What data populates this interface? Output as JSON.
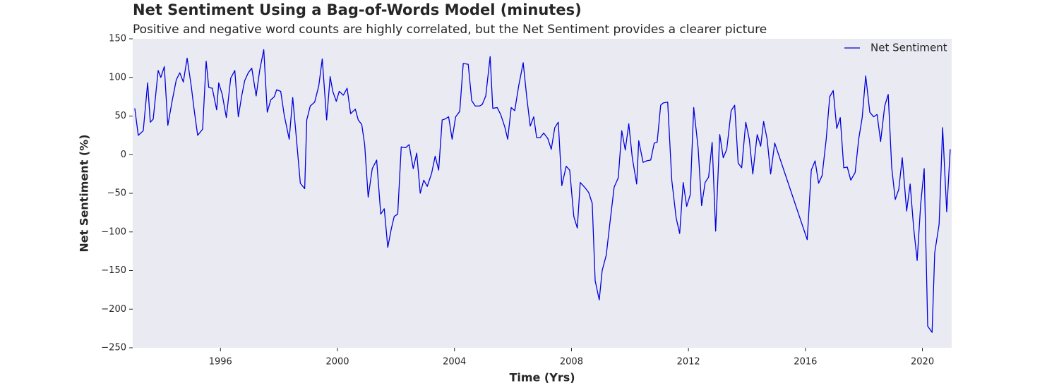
{
  "chart_data": {
    "type": "line",
    "title": "Net Sentiment Using a Bag-of-Words Model (minutes)",
    "subtitle": "Positive and negative word counts are highly correlated, but the Net Sentiment provides a clearer picture",
    "x_label": "Time (Yrs)",
    "y_label": "Net Sentiment (%)",
    "legend_position": "upper right",
    "grid": false,
    "background": "#eaeaf2",
    "xlim": [
      1993.0,
      2021.0
    ],
    "ylim": [
      -250,
      150
    ],
    "xticks": [
      1996,
      2000,
      2004,
      2008,
      2012,
      2016,
      2020
    ],
    "yticks": [
      {
        "value": -250,
        "label": "−250"
      },
      {
        "value": -200,
        "label": "−200"
      },
      {
        "value": -150,
        "label": "−150"
      },
      {
        "value": -100,
        "label": "−100"
      },
      {
        "value": -50,
        "label": "−50"
      },
      0,
      50,
      100,
      150
    ],
    "x": [
      1993.07,
      1993.19,
      1993.36,
      1993.51,
      1993.6,
      1993.7,
      1993.87,
      1993.96,
      1994.08,
      1994.2,
      1994.35,
      1994.49,
      1994.61,
      1994.73,
      1994.86,
      1995.0,
      1995.1,
      1995.22,
      1995.39,
      1995.51,
      1995.6,
      1995.72,
      1995.87,
      1995.94,
      1996.06,
      1996.2,
      1996.35,
      1996.49,
      1996.61,
      1996.73,
      1996.83,
      1996.95,
      1997.07,
      1997.22,
      1997.34,
      1997.48,
      1997.6,
      1997.72,
      1997.84,
      1997.92,
      1998.06,
      1998.18,
      1998.35,
      1998.47,
      1998.57,
      1998.73,
      1998.88,
      1998.95,
      1999.07,
      1999.22,
      1999.36,
      1999.48,
      1999.63,
      1999.75,
      1999.84,
      1999.96,
      2000.06,
      2000.2,
      2000.33,
      2000.45,
      2000.61,
      2000.71,
      2000.83,
      2000.93,
      2001.05,
      2001.19,
      2001.34,
      2001.48,
      2001.6,
      2001.72,
      2001.84,
      2001.94,
      2002.06,
      2002.18,
      2002.33,
      2002.45,
      2002.59,
      2002.71,
      2002.83,
      2002.95,
      2003.07,
      2003.22,
      2003.34,
      2003.46,
      2003.58,
      2003.67,
      2003.8,
      2003.92,
      2004.04,
      2004.18,
      2004.3,
      2004.47,
      2004.59,
      2004.71,
      2004.86,
      2004.95,
      2005.07,
      2005.22,
      2005.31,
      2005.46,
      2005.58,
      2005.72,
      2005.82,
      2005.94,
      2006.06,
      2006.2,
      2006.35,
      2006.47,
      2006.59,
      2006.71,
      2006.81,
      2006.93,
      2007.05,
      2007.19,
      2007.31,
      2007.43,
      2007.55,
      2007.67,
      2007.82,
      2007.94,
      2008.08,
      2008.2,
      2008.3,
      2008.47,
      2008.59,
      2008.71,
      2008.81,
      2008.95,
      2009.05,
      2009.19,
      2009.31,
      2009.46,
      2009.6,
      2009.72,
      2009.84,
      2009.96,
      2010.08,
      2010.23,
      2010.3,
      2010.45,
      2010.57,
      2010.71,
      2010.83,
      2010.93,
      2011.05,
      2011.14,
      2011.29,
      2011.43,
      2011.58,
      2011.7,
      2011.82,
      2011.94,
      2012.06,
      2012.18,
      2012.33,
      2012.45,
      2012.57,
      2012.69,
      2012.81,
      2012.93,
      2013.07,
      2013.19,
      2013.31,
      2013.46,
      2013.58,
      2013.7,
      2013.82,
      2013.96,
      2014.08,
      2014.2,
      2014.35,
      2014.47,
      2014.57,
      2014.69,
      2014.81,
      2014.95,
      2016.06,
      2016.2,
      2016.33,
      2016.45,
      2016.57,
      2016.71,
      2016.83,
      2016.95,
      2017.07,
      2017.19,
      2017.31,
      2017.43,
      2017.55,
      2017.7,
      2017.82,
      2017.94,
      2018.06,
      2018.2,
      2018.33,
      2018.45,
      2018.57,
      2018.71,
      2018.83,
      2018.95,
      2019.07,
      2019.19,
      2019.31,
      2019.46,
      2019.58,
      2019.7,
      2019.82,
      2019.94,
      2020.06,
      2020.18,
      2020.33,
      2020.42,
      2020.57,
      2020.69,
      2020.83,
      2020.95
    ],
    "series": [
      {
        "name": "Net Sentiment",
        "color": "#0000dd",
        "values": [
          60,
          25,
          31,
          93,
          42,
          46,
          109,
          100,
          114,
          38,
          70,
          97,
          106,
          94,
          125,
          89,
          58,
          25,
          33,
          121,
          87,
          86,
          58,
          93,
          78,
          48,
          99,
          109,
          49,
          77,
          96,
          106,
          112,
          76,
          109,
          136,
          55,
          71,
          75,
          84,
          82,
          51,
          20,
          74,
          32,
          -37,
          -44,
          45,
          63,
          68,
          89,
          124,
          45,
          101,
          82,
          69,
          82,
          77,
          86,
          53,
          59,
          45,
          39,
          13,
          -55,
          -18,
          -7,
          -77,
          -70,
          -120,
          -96,
          -80,
          -77,
          10,
          9,
          13,
          -18,
          2,
          -50,
          -33,
          -41,
          -24,
          -2,
          -20,
          45,
          46,
          49,
          20,
          49,
          56,
          118,
          117,
          70,
          63,
          63,
          65,
          76,
          127,
          60,
          61,
          52,
          36,
          20,
          61,
          57,
          90,
          119,
          75,
          37,
          49,
          22,
          22,
          28,
          21,
          7,
          35,
          42,
          -40,
          -15,
          -20,
          -80,
          -95,
          -36,
          -43,
          -49,
          -63,
          -163,
          -188,
          -150,
          -130,
          -90,
          -42,
          -30,
          31,
          6,
          40,
          -4,
          -38,
          18,
          -10,
          -8,
          -7,
          15,
          16,
          64,
          67,
          68,
          -33,
          -82,
          -102,
          -36,
          -67,
          -52,
          61,
          9,
          -66,
          -36,
          -29,
          16,
          -99,
          26,
          -4,
          7,
          57,
          64,
          -11,
          -17,
          42,
          20,
          -25,
          26,
          11,
          43,
          20,
          -25,
          15,
          -110,
          -20,
          -8,
          -37,
          -27,
          20,
          75,
          83,
          34,
          48,
          -17,
          -16,
          -33,
          -23,
          20,
          48,
          102,
          55,
          49,
          52,
          17,
          63,
          78,
          -17,
          -58,
          -45,
          -4,
          -73,
          -38,
          -95,
          -137,
          -64,
          -18,
          -222,
          -230,
          -127,
          -90,
          35,
          -74,
          7
        ]
      }
    ]
  }
}
